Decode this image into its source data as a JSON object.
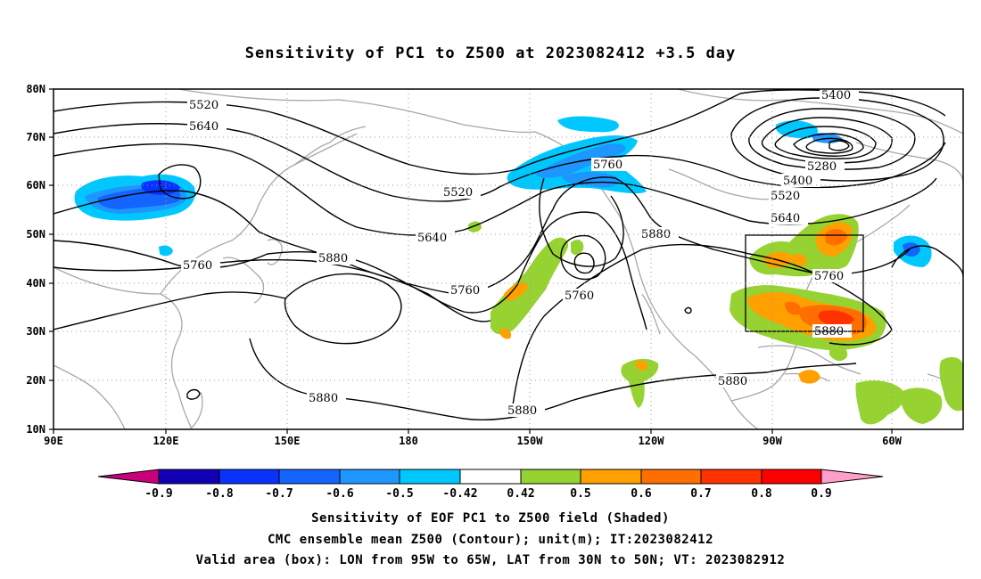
{
  "title": "Sensitivity of PC1 to Z500 at 2023082412 +3.5 day",
  "lon_labels": [
    "90E",
    "120E",
    "150E",
    "180",
    "150W",
    "120W",
    "90W",
    "60W"
  ],
  "lat_labels": [
    "80N",
    "70N",
    "60N",
    "50N",
    "40N",
    "30N",
    "20N",
    "10N"
  ],
  "contour_labels": [
    "5400",
    "5520",
    "5640",
    "5760",
    "5880",
    "5280"
  ],
  "colorbar": {
    "labels": [
      "-0.9",
      "-0.8",
      "-0.7",
      "-0.6",
      "-0.5",
      "-0.42",
      "0.42",
      "0.5",
      "0.6",
      "0.7",
      "0.8",
      "0.9"
    ],
    "colors": [
      "#c8007a",
      "#1200b4",
      "#0a32ff",
      "#1464ff",
      "#1e96ff",
      "#00c8ff",
      "#ffffff",
      "#96d232",
      "#ffa000",
      "#ff6e00",
      "#ff3200",
      "#ff0000",
      "#ff9ec8"
    ]
  },
  "box": {
    "lon_from": "95W",
    "lon_to": "65W",
    "lat_from": "30N",
    "lat_to": "50N"
  },
  "captions": [
    "Sensitivity of EOF PC1 to Z500 field (Shaded)",
    "CMC ensemble mean Z500 (Contour); unit(m); IT:2023082412",
    "Valid area (box): LON from 95W to 65W, LAT from 30N to 50N; VT: 2023082912"
  ]
}
